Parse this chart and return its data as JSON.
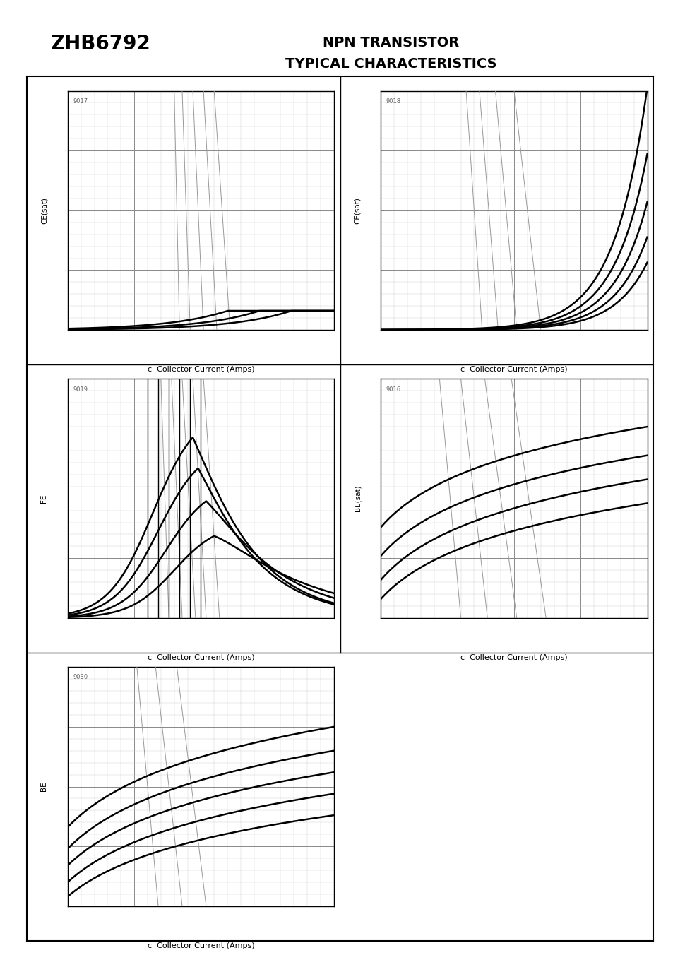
{
  "title_box": "ZHB6792",
  "subtitle_line1": "NPN TRANSISTOR",
  "subtitle_line2": "TYPICAL CHARACTERISTICS",
  "graph_ids": [
    "9017",
    "9018",
    "9019",
    "9016",
    "9030"
  ],
  "ylabels": [
    "CE(sat)",
    "CE(sat)",
    "FE",
    "BE(sat)",
    "BE"
  ],
  "xlabel": "c  Collector Current (Amps)",
  "bg_color": "#ffffff",
  "grid_major_color": "#888888",
  "grid_minor_color": "#cccccc",
  "curve_color": "#000000",
  "light_line_color": "#999999"
}
